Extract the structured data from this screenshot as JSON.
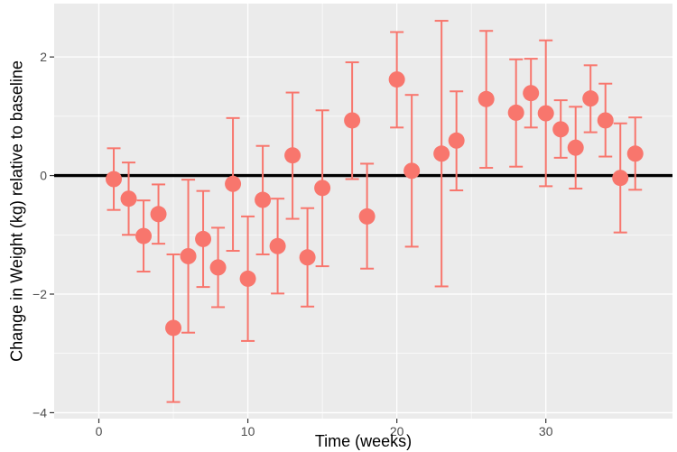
{
  "chart_data": {
    "type": "scatter",
    "title": "",
    "xlabel": "Time (weeks)",
    "ylabel": "Change in Weight (kg) relative to baseline",
    "xlim": [
      -3,
      38.5
    ],
    "ylim": [
      -4.1,
      2.9
    ],
    "xticks": [
      0,
      10,
      20,
      30
    ],
    "xtick_labels": [
      "0",
      "10",
      "20",
      "30"
    ],
    "yticks": [
      -4,
      -2,
      0,
      2
    ],
    "ytick_labels": [
      "−4",
      "−2",
      "0",
      "2"
    ],
    "reference_line_y": 0,
    "grid": true,
    "colors": {
      "panel_background": "#ebebeb",
      "grid": "#ffffff",
      "point": "#f8766d",
      "error_bar": "#f8766d",
      "reference_line": "#000000"
    },
    "points": [
      {
        "x": 1,
        "y": -0.06,
        "lower": -0.58,
        "upper": 0.46
      },
      {
        "x": 2,
        "y": -0.39,
        "lower": -1.0,
        "upper": 0.22
      },
      {
        "x": 3,
        "y": -1.02,
        "lower": -1.62,
        "upper": -0.42
      },
      {
        "x": 4,
        "y": -0.65,
        "lower": -1.15,
        "upper": -0.15
      },
      {
        "x": 5,
        "y": -2.57,
        "lower": -3.82,
        "upper": -1.33
      },
      {
        "x": 6,
        "y": -1.36,
        "lower": -2.65,
        "upper": -0.07
      },
      {
        "x": 7,
        "y": -1.07,
        "lower": -1.88,
        "upper": -0.26
      },
      {
        "x": 8,
        "y": -1.55,
        "lower": -2.22,
        "upper": -0.88
      },
      {
        "x": 9,
        "y": -0.14,
        "lower": -1.27,
        "upper": 0.97
      },
      {
        "x": 10,
        "y": -1.74,
        "lower": -2.79,
        "upper": -0.69
      },
      {
        "x": 11,
        "y": -0.41,
        "lower": -1.33,
        "upper": 0.5
      },
      {
        "x": 12,
        "y": -1.19,
        "lower": -1.99,
        "upper": -0.39
      },
      {
        "x": 13,
        "y": 0.34,
        "lower": -0.73,
        "upper": 1.4
      },
      {
        "x": 14,
        "y": -1.38,
        "lower": -2.21,
        "upper": -0.55
      },
      {
        "x": 15,
        "y": -0.21,
        "lower": -1.53,
        "upper": 1.1
      },
      {
        "x": 17,
        "y": 0.93,
        "lower": -0.06,
        "upper": 1.91
      },
      {
        "x": 18,
        "y": -0.69,
        "lower": -1.57,
        "upper": 0.2
      },
      {
        "x": 20,
        "y": 1.62,
        "lower": 0.81,
        "upper": 2.42
      },
      {
        "x": 21,
        "y": 0.08,
        "lower": -1.2,
        "upper": 1.36
      },
      {
        "x": 23,
        "y": 0.37,
        "lower": -1.87,
        "upper": 2.61
      },
      {
        "x": 24,
        "y": 0.59,
        "lower": -0.25,
        "upper": 1.42
      },
      {
        "x": 26,
        "y": 1.29,
        "lower": 0.13,
        "upper": 2.44
      },
      {
        "x": 28,
        "y": 1.06,
        "lower": 0.15,
        "upper": 1.96
      },
      {
        "x": 29,
        "y": 1.39,
        "lower": 0.81,
        "upper": 1.97
      },
      {
        "x": 30,
        "y": 1.05,
        "lower": -0.18,
        "upper": 2.28
      },
      {
        "x": 31,
        "y": 0.78,
        "lower": 0.3,
        "upper": 1.27
      },
      {
        "x": 32,
        "y": 0.47,
        "lower": -0.22,
        "upper": 1.16
      },
      {
        "x": 33,
        "y": 1.3,
        "lower": 0.73,
        "upper": 1.86
      },
      {
        "x": 34,
        "y": 0.93,
        "lower": 0.32,
        "upper": 1.55
      },
      {
        "x": 35,
        "y": -0.04,
        "lower": -0.96,
        "upper": 0.88
      },
      {
        "x": 36,
        "y": 0.37,
        "lower": -0.24,
        "upper": 0.98
      }
    ]
  }
}
